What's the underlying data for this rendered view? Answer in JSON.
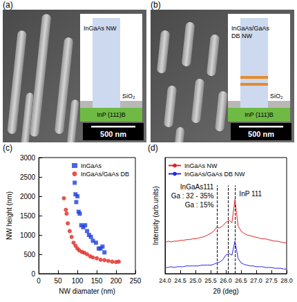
{
  "panels": [
    {
      "letter": "(a)",
      "wire_label": "InGaAs NW",
      "oxide": "SiO₂",
      "substrate": "InP (111)B",
      "scale_bar": "500 nm",
      "double_barrier": false
    },
    {
      "letter": "(b)",
      "wire_label": "InGaAs/GaAs DB NW",
      "oxide": "SiO₂",
      "substrate": "InP (111)B",
      "scale_bar": "500 nm",
      "double_barrier": true
    }
  ],
  "chart_data": [
    {
      "letter": "(c)",
      "type": "scatter",
      "x_label": "NW diamater (nm)",
      "y_label": "NW height (nm)",
      "xlim": [
        0,
        250
      ],
      "xticks": [
        0,
        50,
        100,
        150,
        200,
        250
      ],
      "ylim": [
        0,
        3000
      ],
      "yticks": [
        0,
        500,
        1000,
        1500,
        2000,
        2500,
        3000
      ],
      "legend": "upper right",
      "series": [
        {
          "name": "InGaAs",
          "color": "#1f3fdc",
          "marker": "square",
          "x": [
            93,
            95,
            97,
            100,
            103,
            106,
            110,
            115,
            120,
            125,
            130,
            135,
            140,
            148,
            155,
            160,
            165,
            170
          ],
          "values": [
            2350,
            2050,
            1850,
            2000,
            1600,
            1550,
            1250,
            1200,
            1250,
            1100,
            1000,
            950,
            850,
            800,
            650,
            650,
            700,
            550
          ]
        },
        {
          "name": "InGaAs/GaAs DB",
          "color": "#e4261f",
          "marker": "circle",
          "x": [
            65,
            70,
            72,
            75,
            80,
            85,
            90,
            95,
            100,
            105,
            112,
            118,
            125,
            133,
            140,
            150,
            160,
            170,
            180,
            190,
            200,
            207
          ],
          "values": [
            1950,
            1650,
            1550,
            1300,
            1100,
            950,
            800,
            720,
            650,
            600,
            560,
            540,
            500,
            450,
            420,
            400,
            360,
            350,
            330,
            310,
            300,
            310
          ]
        }
      ]
    },
    {
      "letter": "(d)",
      "type": "line",
      "x_label": "2θ (deg)",
      "y_label": "Intensity (arb.units)",
      "xlim": [
        24,
        28
      ],
      "xticks": [
        {
          "value": 24,
          "label": "24.0"
        },
        24.5,
        {
          "value": 25,
          "label": "25.0"
        },
        25.5,
        {
          "value": 26,
          "label": "26.0"
        },
        26.5,
        {
          "value": 27,
          "label": "27.0"
        },
        27.5,
        {
          "value": 28,
          "label": "28.0"
        }
      ],
      "ylim": [
        0,
        150
      ],
      "tick_labels": "x",
      "legend": "upper left",
      "reference_lines": [
        25.72,
        26.08,
        26.3
      ],
      "annotations": [
        "InGaAs111",
        "Ga : 32 - 35%",
        "Ga : 15%",
        "InP 111"
      ],
      "series": [
        {
          "name": "InGaAs NW",
          "color": "#e02222",
          "x": [
            24,
            24.1,
            24.2,
            24.3,
            24.4,
            24.5,
            24.6,
            24.7,
            24.8,
            24.9,
            25,
            25.1,
            25.2,
            25.3,
            25.4,
            25.5,
            25.6,
            25.7,
            25.8,
            25.9,
            26,
            26.1,
            26.2,
            26.3,
            26.4,
            26.5,
            26.6,
            26.7,
            26.8,
            26.9,
            27,
            27.1,
            27.2,
            27.3,
            27.4,
            27.5,
            27.6,
            27.7,
            27.8,
            27.9,
            28
          ],
          "values": [
            40,
            42,
            41,
            42,
            42,
            43,
            43,
            44,
            44,
            45,
            45,
            46,
            47,
            48,
            50,
            52,
            55,
            60,
            59,
            62,
            66,
            69,
            66,
            96,
            62,
            55,
            52,
            50,
            49,
            48,
            47,
            46,
            45,
            45,
            44,
            43,
            42,
            42,
            41,
            40,
            40
          ]
        },
        {
          "name": "InGaAs/GaAs DB NW",
          "color": "#2424e0",
          "x": [
            24,
            24.1,
            24.2,
            24.3,
            24.4,
            24.5,
            24.6,
            24.7,
            24.8,
            24.9,
            25,
            25.1,
            25.2,
            25.3,
            25.4,
            25.5,
            25.6,
            25.7,
            25.8,
            25.9,
            26,
            26.1,
            26.2,
            26.3,
            26.4,
            26.5,
            26.6,
            26.7,
            26.8,
            26.9,
            27,
            27.1,
            27.2,
            27.3,
            27.4,
            27.5,
            27.6,
            27.7,
            27.8,
            27.9,
            28
          ],
          "values": [
            8,
            8,
            9,
            8,
            9,
            9,
            9,
            10,
            10,
            10,
            10,
            10,
            11,
            11,
            11,
            11,
            12,
            14,
            15,
            18,
            24,
            26,
            24,
            42,
            20,
            14,
            12,
            11,
            10,
            10,
            9,
            9,
            9,
            8,
            8,
            8,
            7,
            7,
            7,
            6,
            6
          ]
        }
      ]
    }
  ]
}
